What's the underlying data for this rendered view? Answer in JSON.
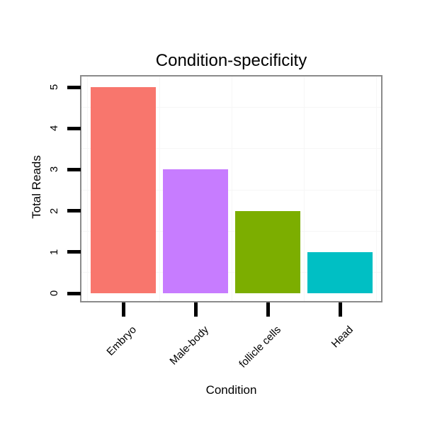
{
  "chart_data": {
    "type": "bar",
    "title": "Condition-specificity",
    "xlabel": "Condition",
    "ylabel": "Total Reads",
    "categories": [
      "Embryo",
      "Male-body",
      "follicle cells",
      "Head"
    ],
    "values": [
      5,
      3,
      2,
      1
    ],
    "bar_colors": [
      "#F8766D",
      "#C77CFF",
      "#7CAE00",
      "#00BFC4"
    ],
    "yticks": [
      0,
      1,
      2,
      3,
      4,
      5
    ],
    "ylim": [
      0,
      5.5
    ],
    "minor_gridlines_y": [
      0.5,
      1.5,
      2.5,
      3.5,
      4.5
    ],
    "grid": "faint minor gridlines only, horizontal at half-units and vertical between categories",
    "legend": "none",
    "style": {
      "panel_border_color": "#8B8B8B",
      "gridline_color": "#F6F6F6",
      "tick_color": "#000000",
      "text_color": "#000000",
      "background": "#FFFFFF",
      "x_tick_label_rotation_deg": 45,
      "y_tick_label_rotation_deg": 90
    }
  }
}
